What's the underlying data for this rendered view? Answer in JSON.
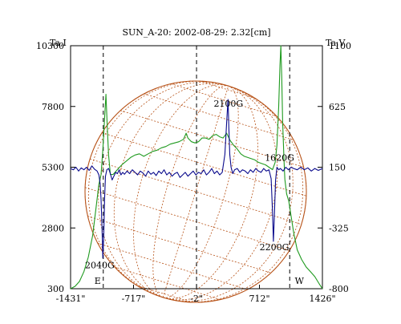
{
  "chart_data": {
    "type": "line",
    "title": "SUN_A-20: 2002-08-29: 2.32[cm]",
    "left_axis_label": "Ta,I",
    "right_axis_label": "Ta,V",
    "x_ticks": [
      "-1431\"",
      "-717\"",
      "-2\"",
      "712\"",
      "1426\""
    ],
    "xlim": [
      -1431,
      1426
    ],
    "ylim_I": [
      300,
      10300
    ],
    "yticks_I": [
      300,
      2800,
      5300,
      7800,
      10300
    ],
    "ylim_V": [
      -800,
      1100
    ],
    "yticks_V": [
      -800,
      -325,
      150,
      625,
      1100
    ],
    "limb_markers": [
      {
        "label": "E",
        "x": -1060
      },
      {
        "label": "W",
        "x": 1055
      }
    ],
    "center_marker_x": -2,
    "annotations": [
      {
        "text": "2100G",
        "x": 360,
        "y_V": 625
      },
      {
        "text": "1620G",
        "x": 940,
        "y_V": 200
      },
      {
        "text": "2040G",
        "x": -1100,
        "y_V": -640
      },
      {
        "text": "2200G",
        "x": 880,
        "y_V": -500
      }
    ],
    "series": [
      {
        "axis": "I",
        "color": "#1f9a1f",
        "points": [
          [
            -1431,
            300
          ],
          [
            -1380,
            400
          ],
          [
            -1330,
            600
          ],
          [
            -1280,
            1000
          ],
          [
            -1230,
            1600
          ],
          [
            -1180,
            2500
          ],
          [
            -1140,
            3700
          ],
          [
            -1110,
            4600
          ],
          [
            -1085,
            5000
          ],
          [
            -1065,
            6000
          ],
          [
            -1045,
            7300
          ],
          [
            -1030,
            8300
          ],
          [
            -1015,
            7000
          ],
          [
            -1000,
            5800
          ],
          [
            -980,
            5000
          ],
          [
            -950,
            5000
          ],
          [
            -900,
            5200
          ],
          [
            -850,
            5400
          ],
          [
            -800,
            5550
          ],
          [
            -750,
            5700
          ],
          [
            -700,
            5800
          ],
          [
            -650,
            5850
          ],
          [
            -600,
            5750
          ],
          [
            -550,
            5850
          ],
          [
            -500,
            5950
          ],
          [
            -450,
            6000
          ],
          [
            -400,
            6100
          ],
          [
            -350,
            6150
          ],
          [
            -300,
            6250
          ],
          [
            -250,
            6300
          ],
          [
            -200,
            6350
          ],
          [
            -150,
            6450
          ],
          [
            -120,
            6700
          ],
          [
            -100,
            6500
          ],
          [
            -60,
            6350
          ],
          [
            -20,
            6300
          ],
          [
            20,
            6350
          ],
          [
            60,
            6500
          ],
          [
            100,
            6500
          ],
          [
            140,
            6450
          ],
          [
            180,
            6600
          ],
          [
            220,
            6650
          ],
          [
            260,
            6550
          ],
          [
            300,
            6500
          ],
          [
            340,
            6700
          ],
          [
            380,
            6400
          ],
          [
            420,
            6200
          ],
          [
            460,
            6050
          ],
          [
            500,
            5850
          ],
          [
            540,
            5750
          ],
          [
            580,
            5700
          ],
          [
            620,
            5650
          ],
          [
            660,
            5600
          ],
          [
            700,
            5500
          ],
          [
            740,
            5450
          ],
          [
            780,
            5400
          ],
          [
            820,
            5300
          ],
          [
            860,
            5200
          ],
          [
            890,
            5500
          ],
          [
            910,
            6200
          ],
          [
            930,
            7800
          ],
          [
            945,
            9500
          ],
          [
            955,
            10300
          ],
          [
            965,
            9000
          ],
          [
            975,
            7200
          ],
          [
            990,
            5600
          ],
          [
            1000,
            4800
          ],
          [
            1020,
            4200
          ],
          [
            1045,
            3900
          ],
          [
            1070,
            3300
          ],
          [
            1100,
            2600
          ],
          [
            1140,
            1900
          ],
          [
            1190,
            1500
          ],
          [
            1240,
            1200
          ],
          [
            1290,
            1000
          ],
          [
            1340,
            800
          ],
          [
            1390,
            500
          ],
          [
            1426,
            300
          ]
        ]
      },
      {
        "axis": "V",
        "color": "#0a0a8c",
        "points": [
          [
            -1431,
            140
          ],
          [
            -1400,
            130
          ],
          [
            -1370,
            150
          ],
          [
            -1340,
            120
          ],
          [
            -1310,
            145
          ],
          [
            -1280,
            130
          ],
          [
            -1250,
            150
          ],
          [
            -1220,
            125
          ],
          [
            -1190,
            160
          ],
          [
            -1160,
            135
          ],
          [
            -1130,
            120
          ],
          [
            -1110,
            90
          ],
          [
            -1095,
            20
          ],
          [
            -1085,
            -100
          ],
          [
            -1075,
            -300
          ],
          [
            -1065,
            -560
          ],
          [
            -1055,
            -400
          ],
          [
            -1045,
            -100
          ],
          [
            -1035,
            80
          ],
          [
            -1020,
            130
          ],
          [
            -1000,
            140
          ],
          [
            -980,
            100
          ],
          [
            -960,
            50
          ],
          [
            -940,
            80
          ],
          [
            -920,
            110
          ],
          [
            -900,
            100
          ],
          [
            -880,
            130
          ],
          [
            -860,
            90
          ],
          [
            -840,
            110
          ],
          [
            -820,
            95
          ],
          [
            -790,
            120
          ],
          [
            -760,
            100
          ],
          [
            -730,
            130
          ],
          [
            -700,
            110
          ],
          [
            -670,
            90
          ],
          [
            -640,
            120
          ],
          [
            -610,
            105
          ],
          [
            -580,
            80
          ],
          [
            -550,
            120
          ],
          [
            -520,
            95
          ],
          [
            -490,
            110
          ],
          [
            -460,
            85
          ],
          [
            -430,
            120
          ],
          [
            -400,
            100
          ],
          [
            -370,
            130
          ],
          [
            -340,
            90
          ],
          [
            -310,
            110
          ],
          [
            -280,
            80
          ],
          [
            -250,
            100
          ],
          [
            -220,
            110
          ],
          [
            -190,
            70
          ],
          [
            -160,
            90
          ],
          [
            -130,
            110
          ],
          [
            -100,
            80
          ],
          [
            -70,
            100
          ],
          [
            -40,
            120
          ],
          [
            -10,
            90
          ],
          [
            20,
            110
          ],
          [
            50,
            100
          ],
          [
            80,
            130
          ],
          [
            110,
            90
          ],
          [
            140,
            110
          ],
          [
            170,
            140
          ],
          [
            200,
            100
          ],
          [
            230,
            120
          ],
          [
            260,
            90
          ],
          [
            290,
            110
          ],
          [
            320,
            250
          ],
          [
            340,
            500
          ],
          [
            355,
            680
          ],
          [
            365,
            450
          ],
          [
            375,
            250
          ],
          [
            390,
            150
          ],
          [
            410,
            100
          ],
          [
            430,
            130
          ],
          [
            460,
            140
          ],
          [
            490,
            110
          ],
          [
            520,
            130
          ],
          [
            550,
            120
          ],
          [
            580,
            100
          ],
          [
            610,
            130
          ],
          [
            640,
            110
          ],
          [
            670,
            140
          ],
          [
            700,
            120
          ],
          [
            730,
            110
          ],
          [
            760,
            140
          ],
          [
            790,
            120
          ],
          [
            820,
            130
          ],
          [
            845,
            60
          ],
          [
            860,
            -200
          ],
          [
            870,
            -430
          ],
          [
            880,
            -250
          ],
          [
            895,
            50
          ],
          [
            910,
            150
          ],
          [
            930,
            130
          ],
          [
            950,
            140
          ],
          [
            980,
            120
          ],
          [
            1010,
            150
          ],
          [
            1040,
            130
          ],
          [
            1070,
            150
          ],
          [
            1100,
            140
          ],
          [
            1140,
            130
          ],
          [
            1180,
            150
          ],
          [
            1220,
            130
          ],
          [
            1260,
            145
          ],
          [
            1300,
            120
          ],
          [
            1340,
            140
          ],
          [
            1380,
            125
          ],
          [
            1426,
            140
          ]
        ]
      }
    ]
  }
}
